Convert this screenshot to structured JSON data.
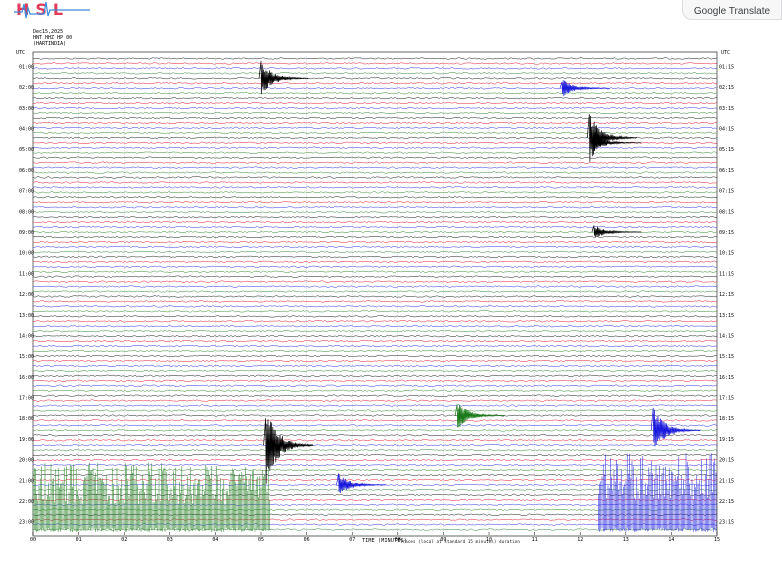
{
  "header": {
    "logo_text": "HSL",
    "translate_label": "Google Translate",
    "date": "Dec15,2025",
    "station": "HNT HHZ HP 00",
    "network": "(HARTINDIA)"
  },
  "chart_data": {
    "type": "helicorder",
    "title": "",
    "xlabel": "TIME (MINUTES)",
    "note": "Traces (local at standard 15 minutes) duration",
    "left_axis_label": "UTC",
    "right_axis_label": "UTC",
    "x_ticks": [
      "00",
      "01",
      "02",
      "03",
      "04",
      "05",
      "06",
      "07",
      "08",
      "09",
      "10",
      "11",
      "12",
      "13",
      "14",
      "15"
    ],
    "xlim": [
      0,
      15
    ],
    "left_hour_labels": [
      "01:00",
      "02:00",
      "03:00",
      "04:00",
      "05:00",
      "06:00",
      "07:00",
      "08:00",
      "09:00",
      "10:00",
      "11:00",
      "12:00",
      "13:00",
      "14:00",
      "15:00",
      "16:00",
      "17:00",
      "18:00",
      "19:00",
      "20:00",
      "21:00",
      "22:00",
      "23:00"
    ],
    "right_hour_labels": [
      "01:15",
      "02:15",
      "03:15",
      "04:15",
      "05:15",
      "06:15",
      "07:15",
      "08:15",
      "09:15",
      "10:15",
      "11:15",
      "12:15",
      "13:15",
      "14:15",
      "15:15",
      "16:15",
      "17:15",
      "18:15",
      "19:15",
      "20:15",
      "21:15",
      "22:15",
      "23:15"
    ],
    "row_count": 96,
    "trace_colors": [
      "#000000",
      "#e0001b",
      "#1a1adc",
      "#1a7a1a"
    ],
    "events": [
      {
        "row": 4,
        "minute": 5.0,
        "amplitude": 1.6,
        "color": "#000000"
      },
      {
        "row": 6,
        "minute": 11.6,
        "amplitude": 0.9,
        "color": "#1a1adc"
      },
      {
        "row": 16,
        "minute": 12.2,
        "amplitude": 2.4,
        "color": "#000000"
      },
      {
        "row": 17,
        "minute": 12.3,
        "amplitude": 0.8,
        "color": "#000000"
      },
      {
        "row": 35,
        "minute": 12.3,
        "amplitude": 0.7,
        "color": "#000000"
      },
      {
        "row": 72,
        "minute": 9.3,
        "amplitude": 1.4,
        "color": "#1a7a1a"
      },
      {
        "row": 75,
        "minute": 13.6,
        "amplitude": 2.2,
        "color": "#1a1adc"
      },
      {
        "row": 78,
        "minute": 5.1,
        "amplitude": 4.0,
        "color": "#000000"
      },
      {
        "row": 86,
        "minute": 6.7,
        "amplitude": 1.1,
        "color": "#1a1adc"
      }
    ],
    "saturated_blocks": [
      {
        "row_start": 80,
        "row_end": 96,
        "minute_start": 12.4,
        "minute_end": 15.0,
        "color": "#1a1adc"
      },
      {
        "row_start": 82,
        "row_end": 96,
        "minute_start": 0.0,
        "minute_end": 5.2,
        "color": "#1a7a1a"
      }
    ]
  }
}
